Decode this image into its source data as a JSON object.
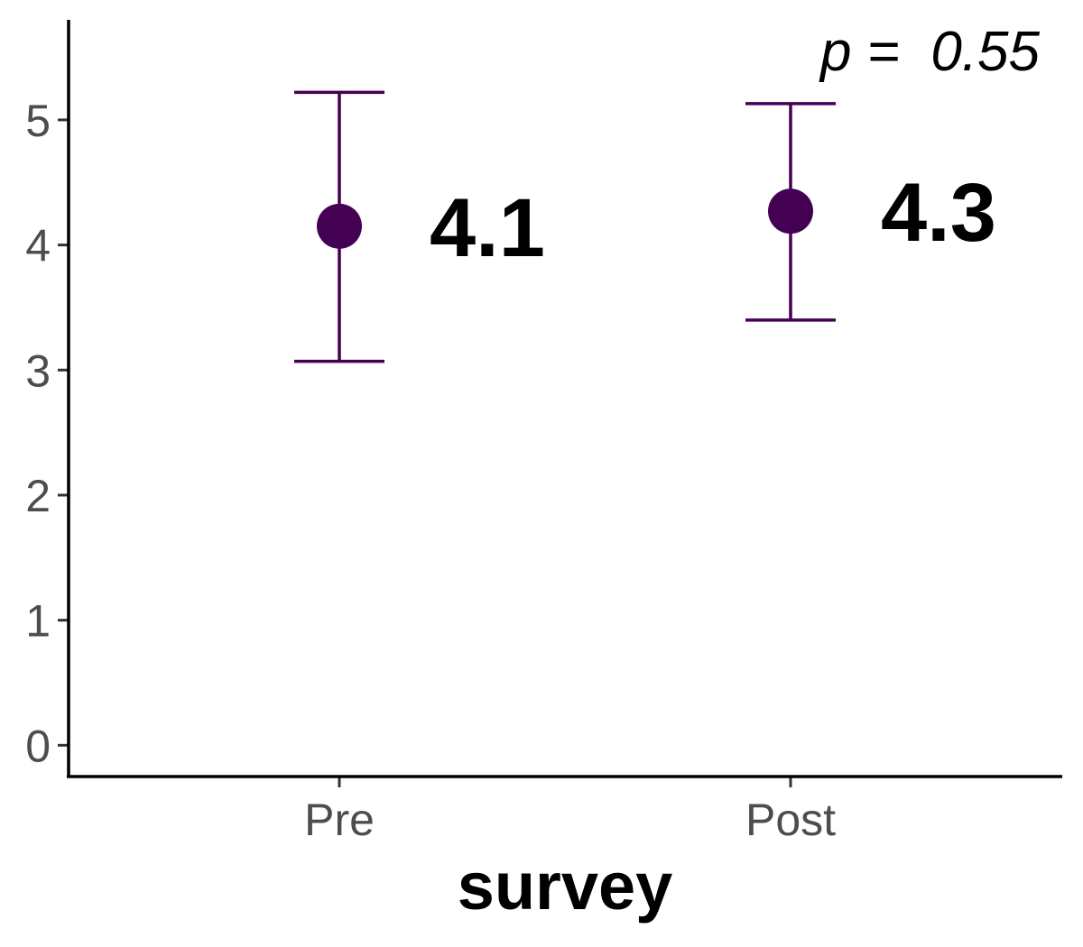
{
  "chart_data": {
    "type": "scatter",
    "categories": [
      "Pre",
      "Post"
    ],
    "values": [
      4.15,
      4.27
    ],
    "error_low": [
      3.07,
      3.4
    ],
    "error_high": [
      5.22,
      5.13
    ],
    "value_labels": [
      "4.1",
      "4.3"
    ],
    "xlabel": "survey",
    "ylabel": "",
    "ylim": [
      -0.25,
      5.8
    ],
    "yticks": [
      0,
      1,
      2,
      3,
      4,
      5
    ],
    "annotation": {
      "prefix": "p",
      "text": " =  0.55"
    },
    "grid": false,
    "colors": {
      "point": "#440154",
      "axis": "#000000",
      "tick_text": "#4d4d4d"
    }
  }
}
